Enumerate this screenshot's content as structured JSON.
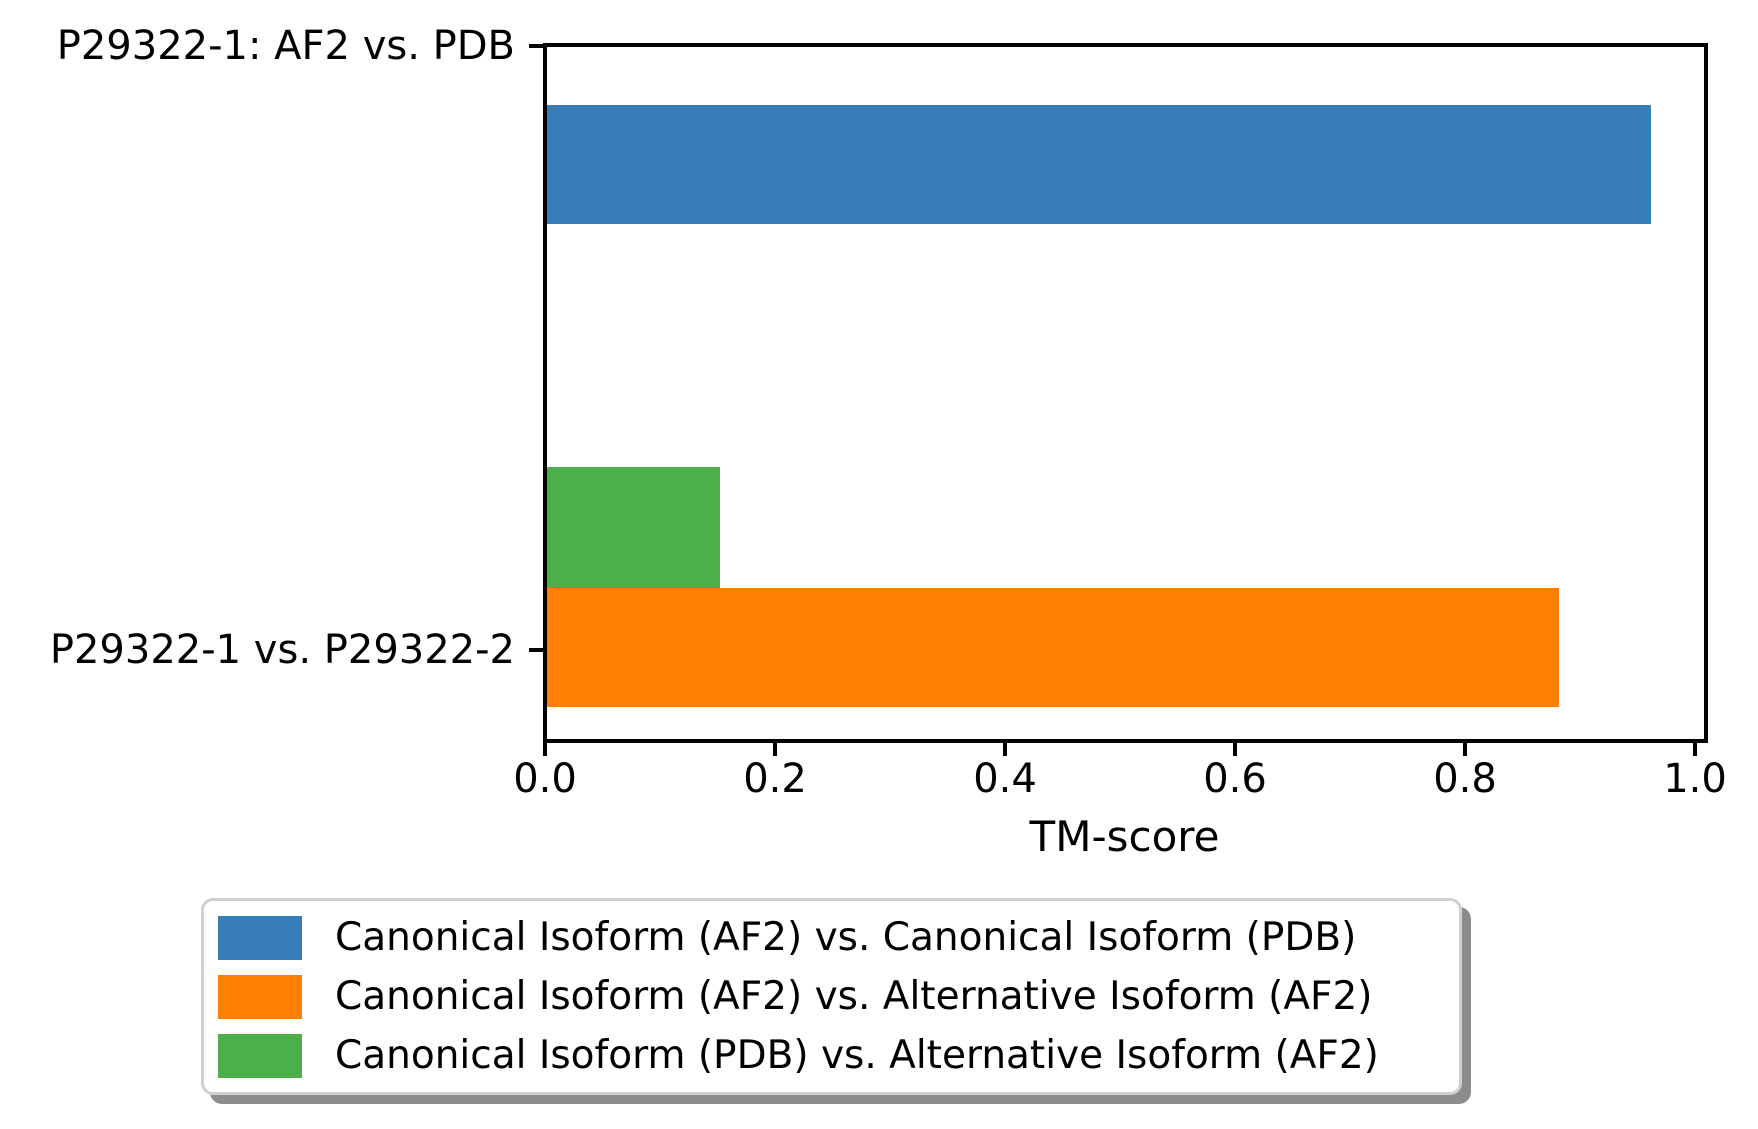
{
  "chart_data": {
    "type": "bar",
    "orientation": "horizontal",
    "title": "",
    "xlabel": "TM-score",
    "ylabel": "",
    "xlim": [
      0.0,
      1.01
    ],
    "grid": false,
    "categories": [
      "P29322-1: AF2 vs. PDB",
      "P29322-1 vs. P29322-2"
    ],
    "xticks": [
      0.0,
      0.2,
      0.4,
      0.6,
      0.8,
      1.0
    ],
    "xtick_labels": [
      "0.0",
      "0.2",
      "0.4",
      "0.6",
      "0.8",
      "1.0"
    ],
    "series": [
      {
        "name": "Canonical Isoform (AF2) vs. Canonical Isoform (PDB)",
        "category": "P29322-1: AF2 vs. PDB",
        "value": 0.96,
        "color": "#377eb8"
      },
      {
        "name": "Canonical Isoform (AF2) vs. Alternative Isoform (AF2)",
        "category": "P29322-1 vs. P29322-2",
        "value": 0.88,
        "color": "#ff7f00"
      },
      {
        "name": "Canonical Isoform (PDB) vs. Alternative Isoform (AF2)",
        "category": "P29322-1 vs. P29322-2",
        "value": 0.15,
        "color": "#4daf4a"
      }
    ],
    "legend_position": "below axes, lower center, boxed with shadow"
  }
}
